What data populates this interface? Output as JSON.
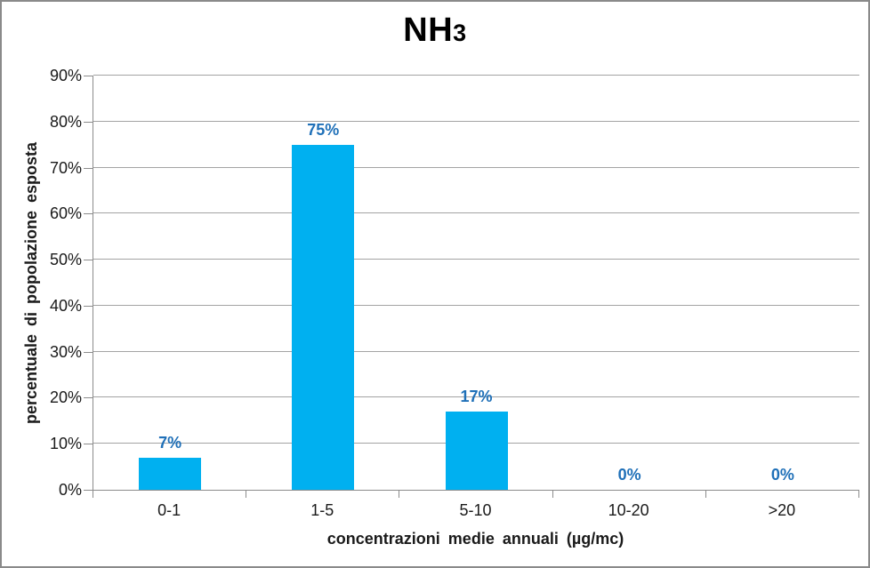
{
  "chart": {
    "title_main": "NH",
    "title_sub": "3"
  },
  "chart_data": {
    "type": "bar",
    "title": "NH3",
    "categories": [
      "0-1",
      "1-5",
      "5-10",
      "10-20",
      ">20"
    ],
    "values": [
      7,
      75,
      17,
      0,
      0
    ],
    "data_labels": [
      "7%",
      "75%",
      "17%",
      "0%",
      "0%"
    ],
    "xlabel": "concentrazioni medie annuali (µg/mc)",
    "ylabel": "percentuale di popolazione esposta",
    "ylim": [
      0,
      90
    ],
    "ytick_step": 10,
    "ytick_labels": [
      "0%",
      "10%",
      "20%",
      "30%",
      "40%",
      "50%",
      "60%",
      "70%",
      "80%",
      "90%"
    ],
    "grid": true,
    "legend": false,
    "bar_color": "#00B0F0",
    "label_color": "#1F70B8",
    "grid_color": "#A3A3A3",
    "axis_color": "#8C8C8C",
    "text_color": "#1A1A1A"
  }
}
